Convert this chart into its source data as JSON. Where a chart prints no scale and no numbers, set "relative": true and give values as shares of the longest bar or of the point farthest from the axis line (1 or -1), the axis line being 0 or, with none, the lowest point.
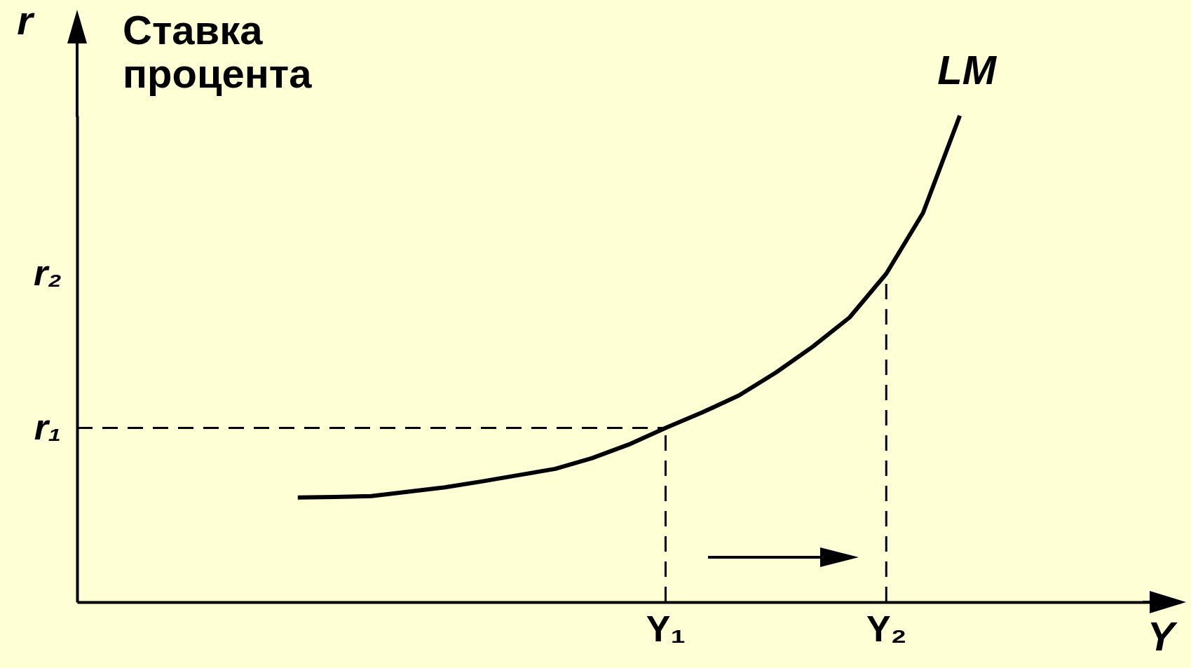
{
  "chart_data": {
    "type": "line",
    "relative": true,
    "xlabel": "Y",
    "ylabel": "r",
    "annotations": [
      "Ставка процента",
      "r₂"
    ],
    "categories": [
      null,
      null,
      null,
      null,
      null,
      null,
      null,
      null,
      null,
      null,
      null,
      null,
      null,
      null,
      null,
      null,
      "Y₁",
      null,
      null,
      null,
      null,
      null,
      "Y₂",
      null,
      null,
      null,
      null,
      null,
      null,
      null,
      null
    ],
    "marker": "none",
    "series": [
      {
        "name": "LM",
        "color": "#000000",
        "line_style": "solid",
        "values": [
          null,
          null,
          null,
          null,
          null,
          null,
          0.215,
          0.216,
          0.218,
          0.227,
          0.236,
          0.248,
          0.261,
          0.274,
          0.296,
          0.324,
          0.358,
          0.39,
          0.425,
          0.472,
          0.525,
          0.585,
          0.675,
          0.8,
          1.0,
          null,
          null,
          null,
          null,
          null,
          null
        ]
      }
    ],
    "ref_lines": [
      {
        "axis": "y",
        "value": 0.358,
        "label": "r₁",
        "color": "#000000",
        "line_style": "dashed"
      },
      {
        "axis": "x",
        "value": "Y₁",
        "color": "#000000",
        "line_style": "dashed"
      },
      {
        "axis": "x",
        "value": "Y₂",
        "color": "#000000",
        "line_style": "dashed"
      }
    ]
  }
}
